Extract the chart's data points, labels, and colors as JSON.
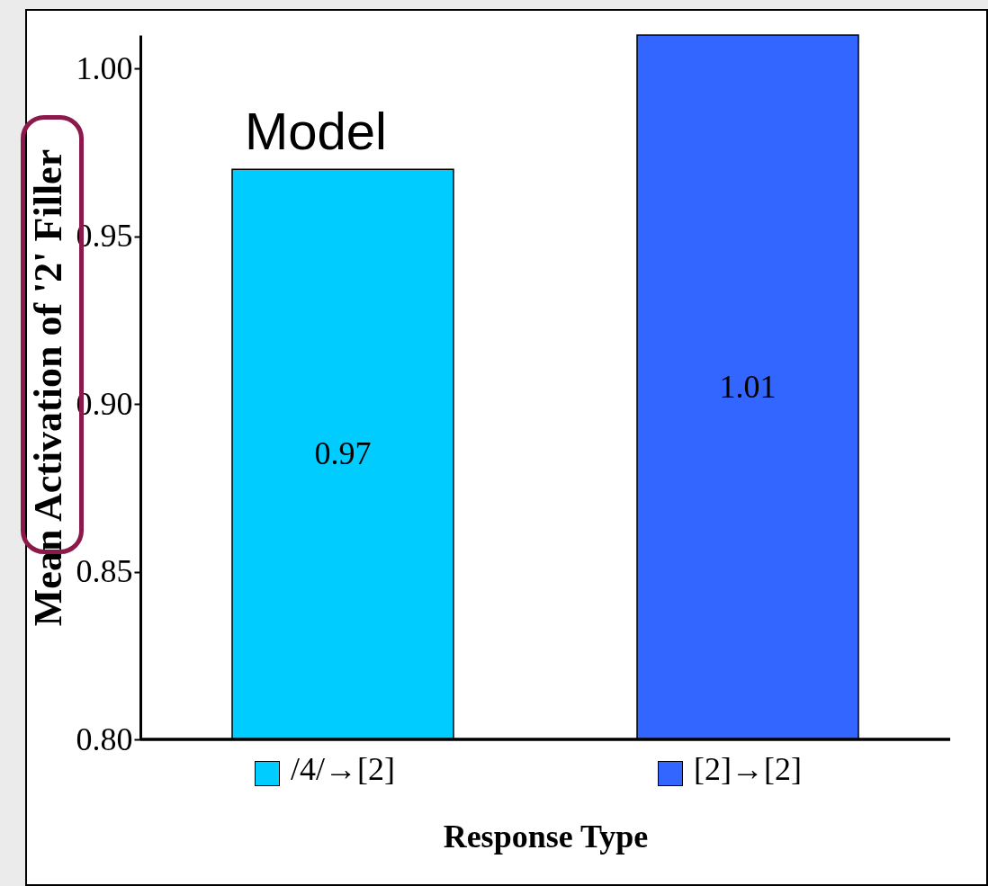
{
  "chart_data": {
    "type": "bar",
    "title": "Model",
    "xlabel": "Response Type",
    "ylabel": "Mean Activation of '2' Filler",
    "categories": [
      "/4/→[2]",
      "[2]→[2]"
    ],
    "values": [
      0.97,
      1.01
    ],
    "colors": [
      "#00ccff",
      "#3366ff"
    ],
    "ylim": [
      0.8,
      1.01
    ],
    "yticks": [
      {
        "value": 0.8,
        "label": "0.80"
      },
      {
        "value": 0.85,
        "label": "0.85"
      },
      {
        "value": 0.9,
        "label": "0.90"
      },
      {
        "value": 0.95,
        "label": "0.95"
      },
      {
        "value": 1.0,
        "label": "1.00"
      }
    ],
    "data_labels": true,
    "grid": false
  }
}
